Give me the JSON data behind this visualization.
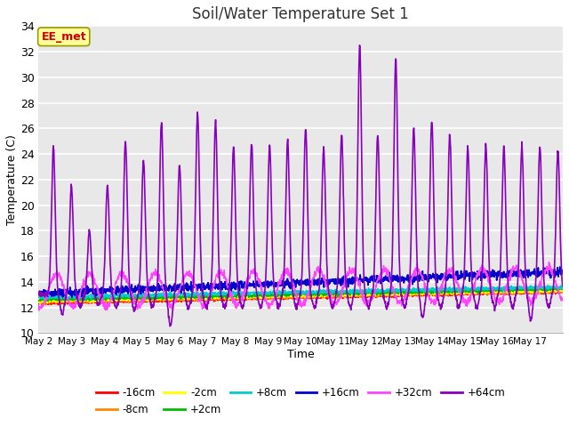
{
  "title": "Soil/Water Temperature Set 1",
  "xlabel": "Time",
  "ylabel": "Temperature (C)",
  "ylim": [
    10,
    34
  ],
  "yticks": [
    10,
    12,
    14,
    16,
    18,
    20,
    22,
    24,
    26,
    28,
    30,
    32,
    34
  ],
  "fig_bg_color": "#ffffff",
  "plot_bg_color": "#e8e8e8",
  "grid_color": "#ffffff",
  "series_colors": {
    "-16cm": "#ff0000",
    "-8cm": "#ff8800",
    "-2cm": "#ffff00",
    "+2cm": "#00bb00",
    "+8cm": "#00cccc",
    "+16cm": "#0000cc",
    "+32cm": "#ff44ff",
    "+64cm": "#8800bb"
  },
  "annotation_text": "EE_met",
  "annotation_color": "#cc0000",
  "annotation_bg": "#ffff99",
  "annotation_border": "#999900",
  "peak_times_64": [
    0.45,
    1.0,
    1.55,
    2.1,
    2.65,
    3.2,
    3.75,
    4.3,
    4.85,
    5.4,
    5.95,
    6.5,
    7.05,
    7.6,
    8.15,
    8.7,
    9.25,
    9.8,
    10.35,
    10.9,
    11.45,
    12.0,
    12.55,
    13.1,
    13.65,
    14.2,
    14.75,
    15.3,
    15.85
  ],
  "peak_heights_64": [
    24.5,
    21.5,
    18.0,
    21.5,
    25.0,
    23.5,
    26.5,
    23.2,
    27.2,
    26.5,
    24.5,
    24.8,
    24.6,
    25.0,
    26.0,
    24.5,
    25.5,
    32.5,
    25.5,
    31.5,
    26.0,
    26.5,
    25.5,
    24.5,
    24.7,
    24.5,
    24.5,
    24.6,
    24.3
  ],
  "trough_times_64": [
    0.72,
    1.27,
    1.82,
    2.37,
    2.92,
    3.47,
    4.02,
    4.57,
    5.12,
    5.67,
    6.22,
    6.77,
    7.32,
    7.87,
    8.42,
    8.97,
    9.52,
    10.07,
    10.62,
    11.17,
    11.72,
    12.27,
    12.82,
    13.37,
    13.92,
    14.47,
    15.02,
    15.57
  ],
  "trough_vals_64": [
    11.5,
    12.0,
    12.2,
    12.0,
    11.8,
    12.0,
    10.5,
    12.0,
    12.0,
    12.0,
    12.0,
    12.0,
    12.0,
    12.0,
    12.0,
    12.0,
    12.0,
    12.0,
    12.0,
    12.0,
    11.2,
    12.0,
    12.0,
    12.0,
    12.0,
    12.0,
    11.0,
    12.0
  ]
}
